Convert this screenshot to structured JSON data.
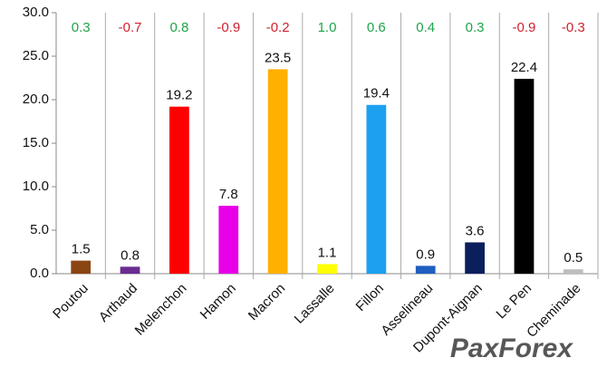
{
  "chart_data": {
    "type": "bar",
    "categories": [
      "Poutou",
      "Arthaud",
      "Melenchon",
      "Hamon",
      "Macron",
      "Lassalle",
      "Fillon",
      "Asselineau",
      "Dupont-Aignan",
      "Le Pen",
      "Cheminade"
    ],
    "values": [
      1.5,
      0.8,
      19.2,
      7.8,
      23.5,
      1.1,
      19.4,
      0.9,
      3.6,
      22.4,
      0.5
    ],
    "colors": [
      "#8b4513",
      "#6a2c91",
      "#ff0000",
      "#e800e8",
      "#ffb000",
      "#ffff00",
      "#1ea0f0",
      "#1f5fbf",
      "#0a1f5c",
      "#000000",
      "#bdbdbd"
    ],
    "changes": [
      0.3,
      -0.7,
      0.8,
      -0.9,
      -0.2,
      1.0,
      0.6,
      0.4,
      0.3,
      -0.9,
      -0.3
    ],
    "change_labels": [
      "0.3",
      "-0.7",
      "0.8",
      "-0.9",
      "-0.2",
      "1.0",
      "0.6",
      "0.4",
      "0.3",
      "-0.9",
      "-0.3"
    ],
    "positive_color": "#1fa34a",
    "negative_color": "#d0202e",
    "ylim": [
      0,
      30
    ],
    "yticks": [
      {
        "value": 0,
        "label": "0.0"
      },
      {
        "value": 5,
        "label": "5.0"
      },
      {
        "value": 10,
        "label": "10.0"
      },
      {
        "value": 15,
        "label": "15.0"
      },
      {
        "value": 20,
        "label": "20.0"
      },
      {
        "value": 25,
        "label": "25.0"
      },
      {
        "value": 30,
        "label": "30.0"
      }
    ],
    "watermark": "PaxForex"
  }
}
